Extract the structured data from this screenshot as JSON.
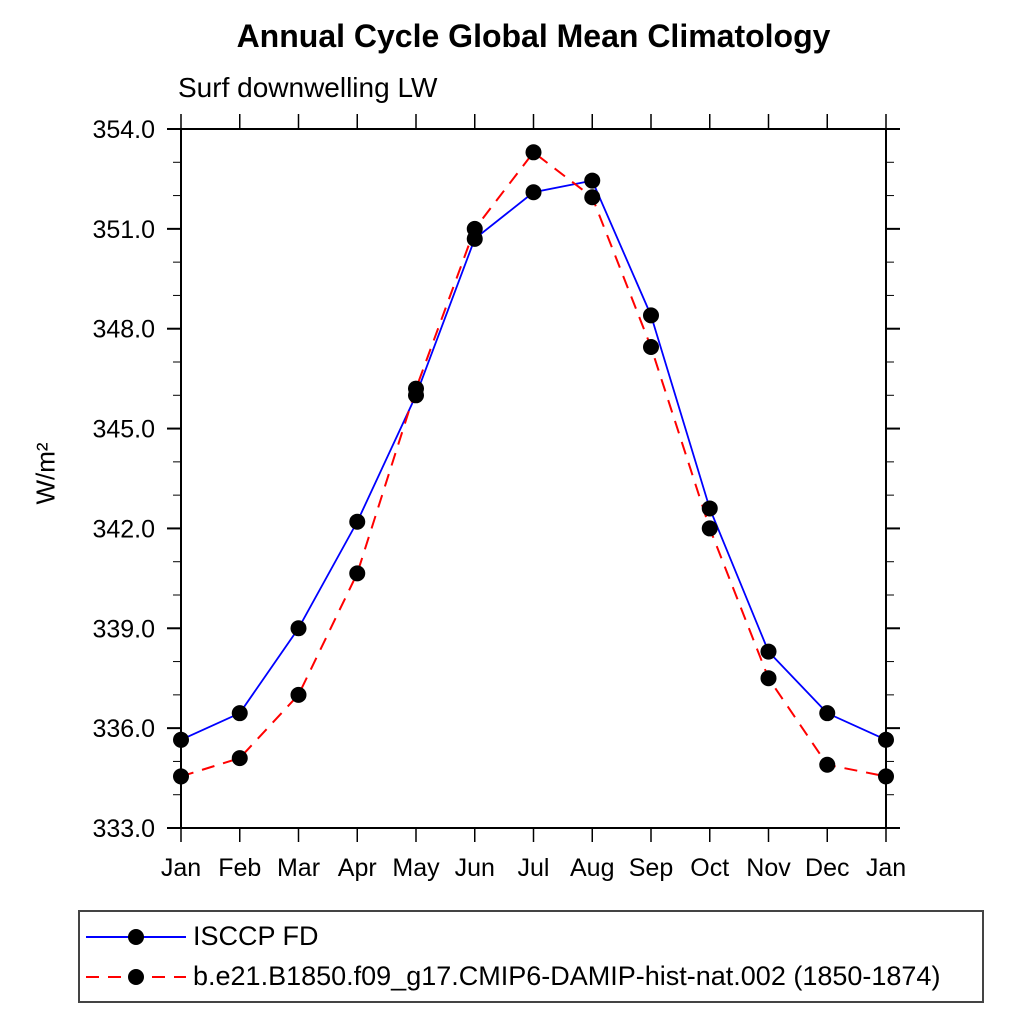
{
  "chart": {
    "title": "Annual Cycle Global Mean Climatology",
    "subtitle": "Surf downwelling LW",
    "y_axis_label": "W/m²"
  },
  "chart_data": {
    "type": "line",
    "title": "Annual Cycle Global Mean Climatology",
    "subtitle": "Surf downwelling LW",
    "xlabel": "",
    "ylabel": "W/m²",
    "x_labels": [
      "Jan",
      "Feb",
      "Mar",
      "Apr",
      "May",
      "Jun",
      "Jul",
      "Aug",
      "Sep",
      "Oct",
      "Nov",
      "Dec",
      "Jan"
    ],
    "ylim": [
      333.0,
      354.0
    ],
    "y_major_ticks": [
      {
        "value": 333.0,
        "label": "333.0"
      },
      {
        "value": 336.0,
        "label": "336.0"
      },
      {
        "value": 339.0,
        "label": "339.0"
      },
      {
        "value": 342.0,
        "label": "342.0"
      },
      {
        "value": 345.0,
        "label": "345.0"
      },
      {
        "value": 348.0,
        "label": "348.0"
      },
      {
        "value": 351.0,
        "label": "351.0"
      },
      {
        "value": 354.0,
        "label": "354.0"
      }
    ],
    "y_minor_step": 1.0,
    "grid": "off",
    "legend_position": "bottom-left-box",
    "marker_color": "#000000",
    "series": [
      {
        "name": "ISCCP FD",
        "color": "#0000ff",
        "style": "solid",
        "marker": "circle",
        "values": [
          335.65,
          336.45,
          339.0,
          342.2,
          346.0,
          350.7,
          352.1,
          352.45,
          348.4,
          342.6,
          338.3,
          336.45,
          335.65
        ]
      },
      {
        "name": "b.e21.B1850.f09_g17.CMIP6-DAMIP-hist-nat.002 (1850-1874)",
        "color": "#ff0000",
        "style": "dashed",
        "marker": "circle",
        "values": [
          334.55,
          335.1,
          337.0,
          340.65,
          346.2,
          351.0,
          353.3,
          351.95,
          347.45,
          342.0,
          337.5,
          334.9,
          334.55
        ]
      }
    ]
  }
}
